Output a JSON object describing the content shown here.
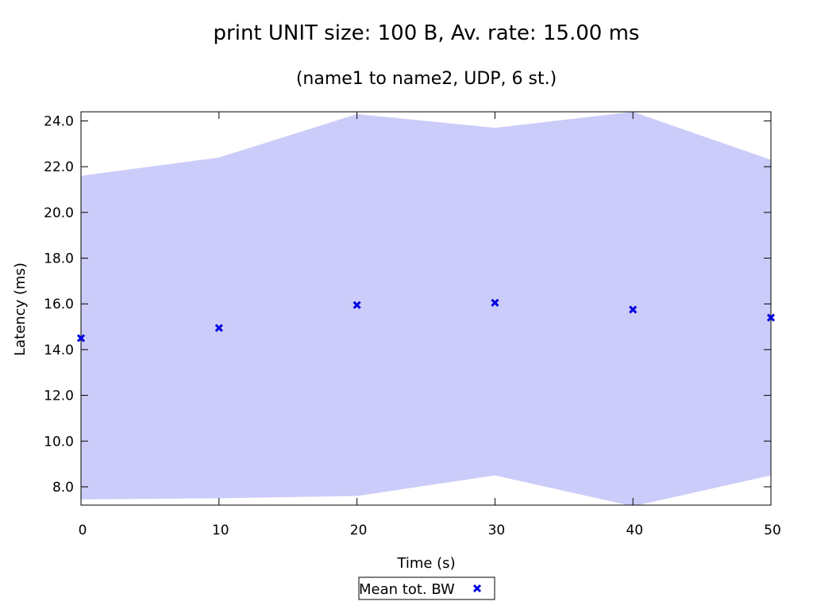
{
  "chart_data": {
    "type": "scatter",
    "title": "print UNIT size: 100 B, Av. rate: 15.00 ms",
    "subtitle": "(name1 to name2, UDP, 6 st.)",
    "xlabel": "Time (s)",
    "ylabel": "Latency (ms)",
    "xlim": [
      0,
      50
    ],
    "ylim": [
      7.2,
      24.4
    ],
    "x_ticks": [
      0,
      10,
      20,
      30,
      40,
      50
    ],
    "x_tick_labels": [
      "0",
      "10",
      "20",
      "30",
      "40",
      "50"
    ],
    "y_ticks": [
      8.0,
      10.0,
      12.0,
      14.0,
      16.0,
      18.0,
      20.0,
      22.0,
      24.0
    ],
    "y_tick_labels": [
      "8.0",
      "10.0",
      "12.0",
      "14.0",
      "16.0",
      "18.0",
      "20.0",
      "22.0",
      "24.0"
    ],
    "grid": false,
    "legend_placement": "bottom-center",
    "band": {
      "x": [
        0,
        10,
        20,
        30,
        40,
        50
      ],
      "upper": [
        21.6,
        22.4,
        24.3,
        23.7,
        24.4,
        22.3
      ],
      "lower": [
        7.45,
        7.5,
        7.6,
        8.5,
        7.15,
        8.5
      ],
      "color": "#ccccfa"
    },
    "series": [
      {
        "name": "Mean tot. BW",
        "marker": "x",
        "color": "#0000e0",
        "x": [
          0,
          10,
          20,
          30,
          40,
          50
        ],
        "y": [
          14.5,
          14.95,
          15.95,
          16.05,
          15.75,
          15.4
        ]
      }
    ]
  }
}
